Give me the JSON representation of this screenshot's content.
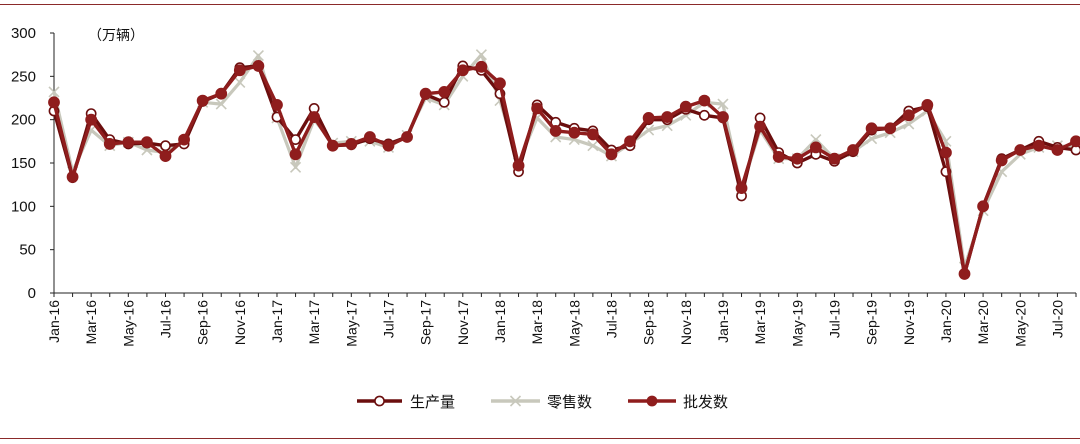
{
  "chart_data": {
    "type": "line",
    "unit_label": "（万辆）",
    "ylim": [
      0,
      300
    ],
    "y_ticks": [
      0,
      50,
      100,
      150,
      200,
      250,
      300
    ],
    "x": [
      "Jan-16",
      "Feb-16",
      "Mar-16",
      "Apr-16",
      "May-16",
      "Jun-16",
      "Jul-16",
      "Aug-16",
      "Sep-16",
      "Oct-16",
      "Nov-16",
      "Dec-16",
      "Jan-17",
      "Feb-17",
      "Mar-17",
      "Apr-17",
      "May-17",
      "Jun-17",
      "Jul-17",
      "Aug-17",
      "Sep-17",
      "Oct-17",
      "Nov-17",
      "Dec-17",
      "Jan-18",
      "Feb-18",
      "Mar-18",
      "Apr-18",
      "May-18",
      "Jun-18",
      "Jul-18",
      "Aug-18",
      "Sep-18",
      "Oct-18",
      "Nov-18",
      "Dec-18",
      "Jan-19",
      "Feb-19",
      "Mar-19",
      "Apr-19",
      "May-19",
      "Jun-19",
      "Jul-19",
      "Aug-19",
      "Sep-19",
      "Oct-19",
      "Nov-19",
      "Dec-19",
      "Jan-20",
      "Feb-20",
      "Mar-20",
      "Apr-20",
      "May-20",
      "Jun-20",
      "Jul-20",
      "Aug-20"
    ],
    "x_tick_labels": [
      "Jan-16",
      "Mar-16",
      "May-16",
      "Jul-16",
      "Sep-16",
      "Nov-16",
      "Jan-17",
      "Mar-17",
      "May-17",
      "Jul-17",
      "Sep-17",
      "Nov-17",
      "Jan-18",
      "Mar-18",
      "May-18",
      "Jul-18",
      "Sep-18",
      "Nov-18",
      "Jan-19",
      "Mar-19",
      "May-19",
      "Jul-19",
      "Sep-19",
      "Nov-19",
      "Jan-20",
      "Mar-20",
      "May-20",
      "Jul-20"
    ],
    "legend_position": "bottom",
    "series": [
      {
        "name": "生产量",
        "color": "#6b0e0e",
        "marker": "open-circle",
        "values": [
          210,
          133,
          207,
          177,
          172,
          173,
          170,
          172,
          221,
          230,
          260,
          262,
          203,
          177,
          213,
          170,
          171,
          178,
          172,
          180,
          229,
          220,
          262,
          257,
          230,
          140,
          217,
          197,
          190,
          187,
          165,
          170,
          200,
          200,
          212,
          205,
          202,
          112,
          202,
          162,
          150,
          160,
          152,
          163,
          188,
          190,
          210,
          215,
          140,
          22,
          100,
          155,
          165,
          175,
          168,
          165
        ]
      },
      {
        "name": "零售数",
        "color": "#c8c8bc",
        "marker": "x",
        "values": [
          232,
          140,
          188,
          170,
          174,
          165,
          162,
          175,
          220,
          218,
          243,
          274,
          202,
          145,
          200,
          173,
          175,
          175,
          168,
          182,
          225,
          217,
          250,
          275,
          222,
          150,
          202,
          180,
          177,
          170,
          158,
          172,
          188,
          193,
          205,
          220,
          218,
          120,
          188,
          155,
          155,
          177,
          155,
          163,
          178,
          185,
          195,
          210,
          175,
          30,
          95,
          140,
          160,
          168,
          170,
          168
        ]
      },
      {
        "name": "批发数",
        "color": "#8f1d1d",
        "marker": "filled-circle",
        "values": [
          220,
          134,
          200,
          172,
          174,
          174,
          158,
          177,
          222,
          230,
          257,
          262,
          217,
          160,
          203,
          170,
          172,
          180,
          170,
          180,
          230,
          232,
          257,
          261,
          242,
          147,
          213,
          187,
          185,
          183,
          160,
          175,
          202,
          203,
          215,
          222,
          203,
          121,
          192,
          157,
          155,
          168,
          155,
          165,
          190,
          190,
          205,
          217,
          162,
          22,
          100,
          153,
          165,
          170,
          165,
          175
        ]
      }
    ]
  }
}
